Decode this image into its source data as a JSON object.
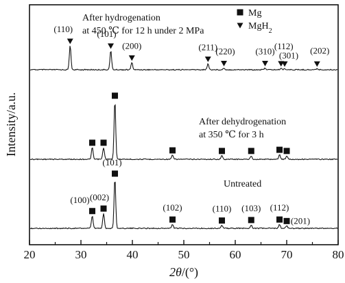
{
  "chart_data": {
    "type": "line",
    "xlabel_symbol": "2θ",
    "xlabel_unit": "/(°)",
    "ylabel": "Intensity/a.u.",
    "xlim": [
      20,
      80
    ],
    "xticks": [
      20,
      30,
      40,
      50,
      60,
      70,
      80
    ],
    "grid": false,
    "legend": {
      "placement": "top-right",
      "entries": [
        {
          "label": "Mg",
          "marker": "square"
        },
        {
          "label": "MgH",
          "sub": "2",
          "marker": "triangle-down"
        }
      ]
    },
    "series": [
      {
        "annotation_lines": [
          "After hydrogenation",
          "at 450  ℃  for 12 h under 2 MPa"
        ],
        "peaks": [
          {
            "x": 27.9,
            "intensity": 1.0,
            "marker": "triangle-down",
            "label": "(110)"
          },
          {
            "x": 35.8,
            "intensity": 0.8,
            "marker": "triangle-down",
            "label": "(101)"
          },
          {
            "x": 39.9,
            "intensity": 0.3,
            "marker": "triangle-down",
            "label": "(200)"
          },
          {
            "x": 54.7,
            "intensity": 0.25,
            "marker": "triangle-down",
            "label": "(211)"
          },
          {
            "x": 57.8,
            "intensity": 0.07,
            "marker": "triangle-down",
            "label": "(220)"
          },
          {
            "x": 65.8,
            "intensity": 0.07,
            "marker": "triangle-down",
            "label": "(310)"
          },
          {
            "x": 68.9,
            "intensity": 0.06,
            "marker": "triangle-down",
            "label": "(112)"
          },
          {
            "x": 69.6,
            "intensity": 0.05,
            "marker": "triangle-down",
            "label": "(301)"
          },
          {
            "x": 75.9,
            "intensity": 0.05,
            "marker": "triangle-down",
            "label": "(202)"
          }
        ]
      },
      {
        "annotation_lines": [
          "After dehydrogenation",
          "at 350  ℃  for 3 h"
        ],
        "peaks": [
          {
            "x": 32.2,
            "intensity": 0.2,
            "marker": "square"
          },
          {
            "x": 34.4,
            "intensity": 0.2,
            "marker": "square"
          },
          {
            "x": 36.6,
            "intensity": 1.0,
            "marker": "square"
          },
          {
            "x": 47.8,
            "intensity": 0.07,
            "marker": "square"
          },
          {
            "x": 57.4,
            "intensity": 0.06,
            "marker": "square"
          },
          {
            "x": 63.1,
            "intensity": 0.06,
            "marker": "square"
          },
          {
            "x": 68.6,
            "intensity": 0.08,
            "marker": "square"
          },
          {
            "x": 70.0,
            "intensity": 0.06,
            "marker": "square"
          }
        ]
      },
      {
        "annotation_lines": [
          "Untreated"
        ],
        "peaks": [
          {
            "x": 32.2,
            "intensity": 0.25,
            "marker": "square",
            "label": "(100)"
          },
          {
            "x": 34.4,
            "intensity": 0.3,
            "marker": "square",
            "label": "(002)"
          },
          {
            "x": 36.6,
            "intensity": 1.0,
            "marker": "square",
            "label": "(101)"
          },
          {
            "x": 47.8,
            "intensity": 0.08,
            "marker": "square",
            "label": "(102)"
          },
          {
            "x": 57.4,
            "intensity": 0.06,
            "marker": "square",
            "label": "(110)"
          },
          {
            "x": 63.1,
            "intensity": 0.07,
            "marker": "square",
            "label": "(103)"
          },
          {
            "x": 68.6,
            "intensity": 0.08,
            "marker": "square",
            "label": "(112)"
          },
          {
            "x": 70.0,
            "intensity": 0.05,
            "marker": "square",
            "label": "(201)"
          }
        ]
      }
    ]
  }
}
